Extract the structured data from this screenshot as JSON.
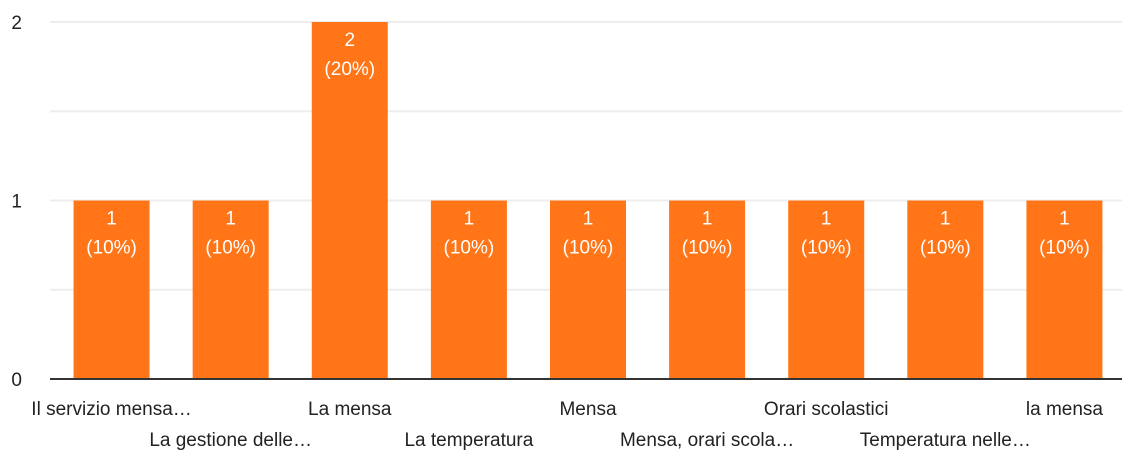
{
  "chart_data": {
    "type": "bar",
    "categories": [
      "Il servizio mensa…",
      "La gestione delle…",
      "La mensa",
      "La temperatura",
      "Mensa",
      "Mensa, orari scola…",
      "Orari scolastici",
      "Temperatura nelle…",
      "la mensa"
    ],
    "values": [
      1,
      1,
      2,
      1,
      1,
      1,
      1,
      1,
      1
    ],
    "data_labels": [
      {
        "count": "1",
        "percent": "(10%)"
      },
      {
        "count": "1",
        "percent": "(10%)"
      },
      {
        "count": "2",
        "percent": "(20%)"
      },
      {
        "count": "1",
        "percent": "(10%)"
      },
      {
        "count": "1",
        "percent": "(10%)"
      },
      {
        "count": "1",
        "percent": "(10%)"
      },
      {
        "count": "1",
        "percent": "(10%)"
      },
      {
        "count": "1",
        "percent": "(10%)"
      },
      {
        "count": "1",
        "percent": "(10%)"
      }
    ],
    "y_ticks": [
      "0",
      "1",
      "2"
    ],
    "ylim": [
      0,
      2
    ],
    "grid": true,
    "bar_color": "#ff7518",
    "grid_color": "#eeeeee",
    "axis_color": "#333333",
    "text_color": "#222222",
    "label_color": "#ffffff"
  }
}
